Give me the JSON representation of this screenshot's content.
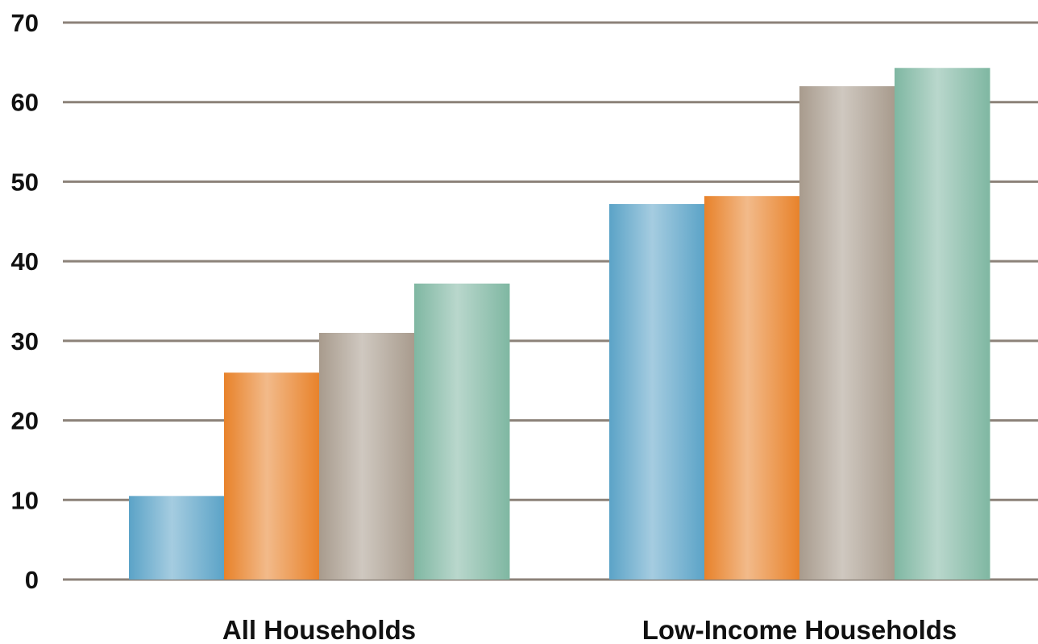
{
  "chart_data": {
    "type": "bar",
    "title": "",
    "xlabel": "",
    "ylabel": "",
    "categories": [
      "All Households",
      "Low-Income Households"
    ],
    "series": [
      {
        "values": [
          10.5,
          47.2
        ],
        "color": "#5ba3c7"
      },
      {
        "values": [
          26.0,
          48.2
        ],
        "color": "#e8822a"
      },
      {
        "values": [
          31.0,
          62.0
        ],
        "color": "#a89b8d"
      },
      {
        "values": [
          37.2,
          64.3
        ],
        "color": "#7fb7a2"
      }
    ],
    "ylim": [
      0,
      70
    ],
    "yticks": [
      0,
      10,
      20,
      30,
      40,
      50,
      60,
      70
    ],
    "grid": true,
    "legend": "none"
  }
}
